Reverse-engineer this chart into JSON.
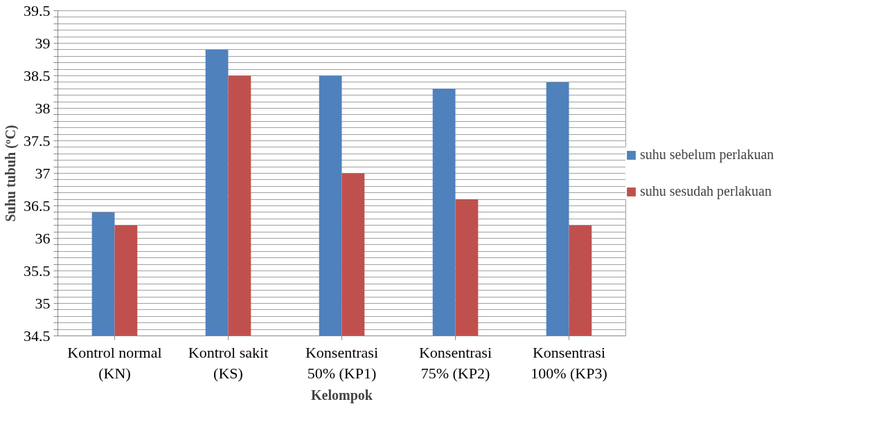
{
  "chart_data": {
    "type": "bar",
    "xlabel": "Kelompok",
    "ylabel": "Suhu tubuh (ºC)",
    "categories": [
      "Kontrol normal\n(KN)",
      "Kontrol sakit\n(KS)",
      "Konsentrasi\n50% (KP1)",
      "Konsentrasi\n75% (KP2)",
      "Konsentrasi\n100% (KP3)"
    ],
    "series": [
      {
        "name": "suhu sebelum perlakuan",
        "color": "#4f81bd",
        "values": [
          36.4,
          38.9,
          38.5,
          38.3,
          38.4
        ]
      },
      {
        "name": "suhu sesudah perlakuan",
        "color": "#c0504d",
        "values": [
          36.2,
          38.5,
          37.0,
          36.6,
          36.2
        ]
      }
    ],
    "ylim": [
      34.5,
      39.5
    ],
    "yticks": [
      34.5,
      {
        "value": 34.6,
        "label": null
      },
      {
        "value": 34.7,
        "label": null
      },
      {
        "value": 34.8,
        "label": null
      },
      {
        "value": 34.9,
        "label": null
      },
      35,
      {
        "value": 35.1,
        "label": null
      },
      {
        "value": 35.2,
        "label": null
      },
      {
        "value": 35.3,
        "label": null
      },
      {
        "value": 35.4,
        "label": null
      },
      35.5,
      {
        "value": 35.6,
        "label": null
      },
      {
        "value": 35.7,
        "label": null
      },
      {
        "value": 35.8,
        "label": null
      },
      {
        "value": 35.9,
        "label": null
      },
      36,
      {
        "value": 36.1,
        "label": null
      },
      {
        "value": 36.2,
        "label": null
      },
      {
        "value": 36.3,
        "label": null
      },
      {
        "value": 36.4,
        "label": null
      },
      36.5,
      {
        "value": 36.6,
        "label": null
      },
      {
        "value": 36.7,
        "label": null
      },
      {
        "value": 36.8,
        "label": null
      },
      {
        "value": 36.9,
        "label": null
      },
      37,
      {
        "value": 37.1,
        "label": null
      },
      {
        "value": 37.2,
        "label": null
      },
      {
        "value": 37.3,
        "label": null
      },
      {
        "value": 37.4,
        "label": null
      },
      37.5,
      {
        "value": 37.6,
        "label": null
      },
      {
        "value": 37.7,
        "label": null
      },
      {
        "value": 37.8,
        "label": null
      },
      {
        "value": 37.9,
        "label": null
      },
      38,
      {
        "value": 38.1,
        "label": null
      },
      {
        "value": 38.2,
        "label": null
      },
      {
        "value": 38.3,
        "label": null
      },
      {
        "value": 38.4,
        "label": null
      },
      38.5,
      {
        "value": 38.6,
        "label": null
      },
      {
        "value": 38.7,
        "label": null
      },
      {
        "value": 38.8,
        "label": null
      },
      {
        "value": 38.9,
        "label": null
      },
      39,
      {
        "value": 39.1,
        "label": null
      },
      {
        "value": 39.2,
        "label": null
      },
      {
        "value": 39.3,
        "label": null
      },
      {
        "value": 39.4,
        "label": null
      },
      39.5
    ],
    "grid": "y",
    "legend": "right"
  }
}
